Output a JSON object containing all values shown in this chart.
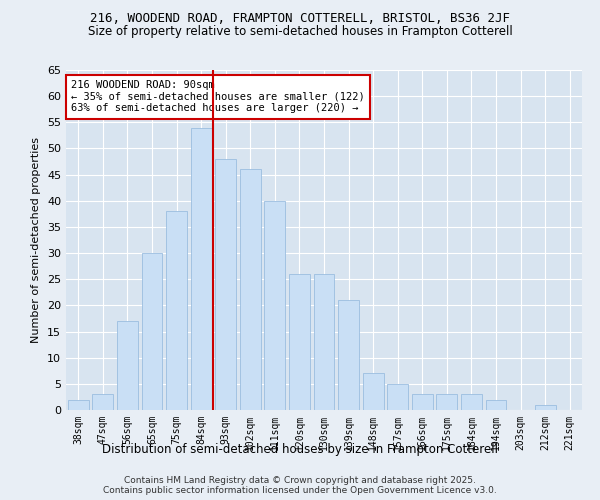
{
  "title": "216, WOODEND ROAD, FRAMPTON COTTERELL, BRISTOL, BS36 2JF",
  "subtitle": "Size of property relative to semi-detached houses in Frampton Cotterell",
  "xlabel": "Distribution of semi-detached houses by size in Frampton Cotterell",
  "ylabel": "Number of semi-detached properties",
  "footer": "Contains HM Land Registry data © Crown copyright and database right 2025.\nContains public sector information licensed under the Open Government Licence v3.0.",
  "categories": [
    "38sqm",
    "47sqm",
    "56sqm",
    "65sqm",
    "75sqm",
    "84sqm",
    "93sqm",
    "102sqm",
    "111sqm",
    "120sqm",
    "130sqm",
    "139sqm",
    "148sqm",
    "157sqm",
    "166sqm",
    "175sqm",
    "184sqm",
    "194sqm",
    "203sqm",
    "212sqm",
    "221sqm"
  ],
  "values": [
    2,
    3,
    17,
    30,
    38,
    54,
    48,
    46,
    40,
    26,
    26,
    21,
    7,
    5,
    3,
    3,
    3,
    2,
    0,
    1,
    0
  ],
  "bar_color": "#c9dff5",
  "bar_edge_color": "#9bbee0",
  "vline_color": "#cc0000",
  "annotation_title": "216 WOODEND ROAD: 90sqm",
  "annotation_line1": "← 35% of semi-detached houses are smaller (122)",
  "annotation_line2": "63% of semi-detached houses are larger (220) →",
  "annotation_box_color": "#ffffff",
  "annotation_box_edge": "#cc0000",
  "ylim": [
    0,
    65
  ],
  "yticks": [
    0,
    5,
    10,
    15,
    20,
    25,
    30,
    35,
    40,
    45,
    50,
    55,
    60,
    65
  ],
  "bg_color": "#e8eef5",
  "plot_bg_color": "#d8e4f0",
  "grid_color": "#ffffff",
  "title_fontsize": 9,
  "subtitle_fontsize": 8.5
}
